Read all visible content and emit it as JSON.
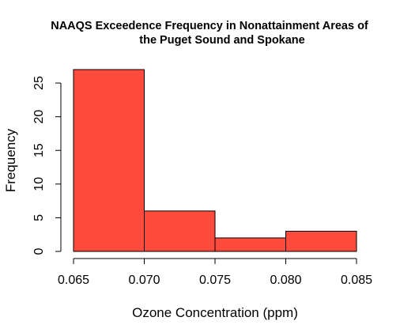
{
  "chart_data": {
    "type": "bar",
    "title_line1": "NAAQS Exceedence Frequency in Nonattainment Areas of",
    "title_line2": "the Puget Sound and Spokane",
    "xlabel": "Ozone Concentration (ppm)",
    "ylabel": "Frequency",
    "bins": [
      {
        "start": 0.065,
        "end": 0.07,
        "count": 27
      },
      {
        "start": 0.07,
        "end": 0.075,
        "count": 6
      },
      {
        "start": 0.075,
        "end": 0.08,
        "count": 2
      },
      {
        "start": 0.08,
        "end": 0.085,
        "count": 3
      }
    ],
    "xlim": [
      0.065,
      0.085
    ],
    "ylim": [
      0,
      27
    ],
    "x_ticks": [
      "0.065",
      "0.070",
      "0.075",
      "0.080",
      "0.085"
    ],
    "y_ticks": [
      0,
      5,
      10,
      15,
      20,
      25
    ],
    "bar_color": "#FF4B3B",
    "grid": false
  }
}
